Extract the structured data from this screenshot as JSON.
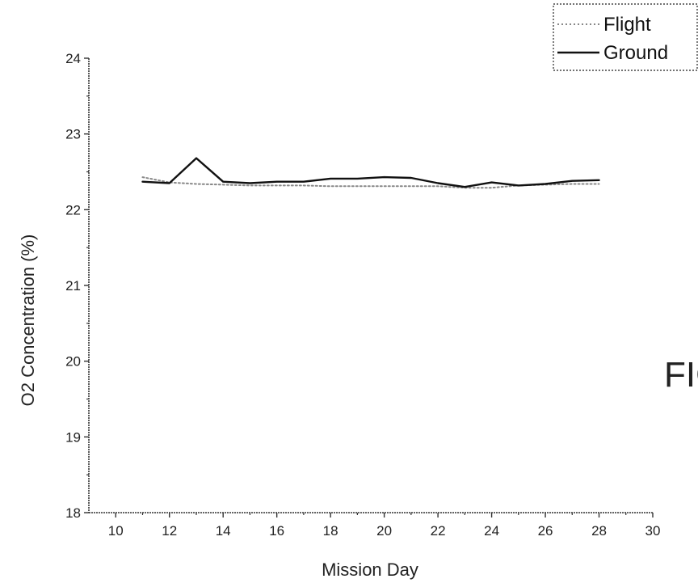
{
  "chart_data": {
    "type": "line",
    "xlabel": "Mission Day",
    "ylabel": "O2 Concentration (%)",
    "xlim": [
      9,
      30
    ],
    "ylim": [
      18,
      24
    ],
    "xticks": [
      10,
      12,
      14,
      16,
      18,
      20,
      22,
      24,
      26,
      28,
      30
    ],
    "yticks": [
      18,
      19,
      20,
      21,
      22,
      23,
      24
    ],
    "grid": false,
    "legend_position": "top-right",
    "series": [
      {
        "name": "Flight",
        "style": "dotted",
        "color": "#888888",
        "x": [
          11,
          12,
          13,
          14,
          15,
          16,
          17,
          18,
          19,
          20,
          21,
          22,
          23,
          24,
          25,
          26,
          27,
          28
        ],
        "values": [
          22.43,
          22.36,
          22.34,
          22.33,
          22.32,
          22.32,
          22.32,
          22.31,
          22.31,
          22.31,
          22.31,
          22.31,
          22.29,
          22.29,
          22.32,
          22.33,
          22.34,
          22.34
        ]
      },
      {
        "name": "Ground",
        "style": "solid",
        "color": "#111111",
        "x": [
          11,
          12,
          13,
          14,
          15,
          16,
          17,
          18,
          19,
          20,
          21,
          22,
          23,
          24,
          25,
          26,
          27,
          28
        ],
        "values": [
          22.37,
          22.35,
          22.68,
          22.37,
          22.35,
          22.37,
          22.37,
          22.41,
          22.41,
          22.43,
          22.42,
          22.35,
          22.3,
          22.36,
          22.32,
          22.34,
          22.38,
          22.39
        ]
      }
    ]
  },
  "figure_label": "FIG"
}
